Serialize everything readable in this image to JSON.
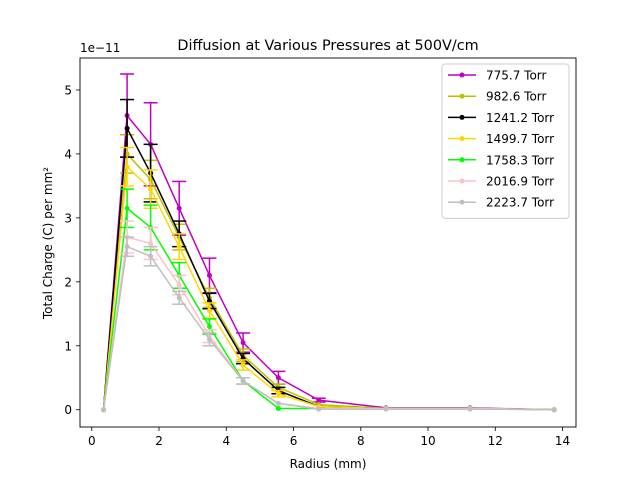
{
  "chart_data": {
    "type": "line",
    "title": "Diffusion at Various Pressures at 500V/cm",
    "xlabel": "Radius (mm)",
    "ylabel": "Total Charge (C) per mm²",
    "y_offset_label": "1e−11",
    "y_scale": 1e-11,
    "xlim": [
      -0.35,
      14.4
    ],
    "ylim": [
      -0.27,
      5.5
    ],
    "x_ticks": [
      0,
      2,
      4,
      6,
      8,
      10,
      12,
      14
    ],
    "x_tick_labels": [
      "0",
      "2",
      "4",
      "6",
      "8",
      "10",
      "12",
      "14"
    ],
    "y_ticks": [
      0,
      1,
      2,
      3,
      4,
      5
    ],
    "y_tick_labels": [
      "0",
      "1",
      "2",
      "3",
      "4",
      "5"
    ],
    "legend_position": "top-right",
    "grid": false,
    "x": [
      0.35,
      1.05,
      1.75,
      2.6,
      3.5,
      4.5,
      5.55,
      6.75,
      8.75,
      11.25,
      13.75
    ],
    "series": [
      {
        "name": "775.7 Torr",
        "color": "#bf00bf",
        "values": [
          0,
          4.6,
          4.15,
          3.15,
          2.1,
          1.05,
          0.5,
          0.15,
          0.03,
          0.03,
          0
        ],
        "errors": [
          0,
          0.65,
          0.65,
          0.42,
          0.27,
          0.15,
          0.1,
          0.03,
          0,
          0,
          0
        ]
      },
      {
        "name": "982.6 Torr",
        "color": "#bfbf00",
        "values": [
          0,
          4.0,
          3.6,
          2.7,
          1.75,
          0.85,
          0.35,
          0.08,
          0.02,
          0.02,
          0
        ],
        "errors": [
          0,
          0.3,
          0.3,
          0.2,
          0.15,
          0.1,
          0.05,
          0,
          0,
          0,
          0
        ]
      },
      {
        "name": "1241.2 Torr",
        "color": "#000000",
        "values": [
          0,
          4.4,
          3.7,
          2.75,
          1.7,
          0.8,
          0.3,
          0.05,
          0.02,
          0.02,
          0
        ],
        "errors": [
          0,
          0.45,
          0.45,
          0.2,
          0.12,
          0.08,
          0.05,
          0,
          0,
          0,
          0
        ]
      },
      {
        "name": "1499.7 Torr",
        "color": "#ffd700",
        "values": [
          0,
          3.8,
          3.45,
          2.55,
          1.55,
          0.7,
          0.25,
          0.05,
          0.02,
          0.02,
          0
        ],
        "errors": [
          0,
          0.3,
          0.3,
          0.2,
          0.12,
          0.08,
          0.05,
          0,
          0,
          0,
          0
        ]
      },
      {
        "name": "1758.3 Torr",
        "color": "#00ff00",
        "values": [
          0,
          3.15,
          2.85,
          2.1,
          1.3,
          0.45,
          0.02,
          0.02,
          0.02,
          0.02,
          0
        ],
        "errors": [
          0,
          0.3,
          0.35,
          0.2,
          0.12,
          0.05,
          0,
          0,
          0,
          0,
          0
        ]
      },
      {
        "name": "2016.9 Torr",
        "color": "#ffc0cb",
        "values": [
          0,
          2.7,
          2.6,
          1.95,
          1.15,
          0.45,
          0.1,
          0.02,
          0.02,
          0.02,
          0
        ],
        "errors": [
          0,
          0.25,
          0.25,
          0.15,
          0.1,
          0.05,
          0,
          0,
          0,
          0,
          0
        ]
      },
      {
        "name": "2223.7 Torr",
        "color": "#bfbfbf",
        "values": [
          0,
          2.55,
          2.4,
          1.75,
          1.1,
          0.45,
          0.1,
          0.01,
          0.01,
          0.01,
          0
        ],
        "errors": [
          0,
          0.15,
          0.15,
          0.1,
          0.1,
          0.05,
          0,
          0,
          0,
          0,
          0
        ]
      }
    ]
  }
}
